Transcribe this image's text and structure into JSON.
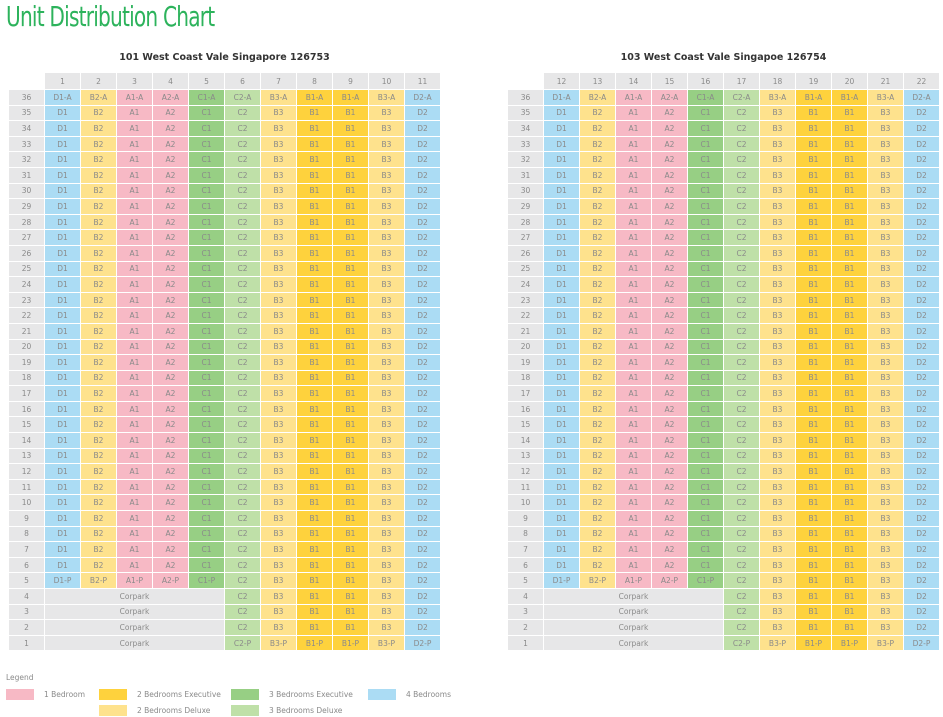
{
  "page_title": "Unit Distribution Chart",
  "colors": {
    "1br": "#f7b9c5",
    "2br_exec": "#fed23d",
    "2br_deluxe": "#fee28d",
    "3br_exec": "#97cf84",
    "3br_deluxe": "#bfe0a8",
    "4br": "#abdcf4",
    "grid": "#e7e7e8"
  },
  "legend": {
    "title": "Legend",
    "items": [
      {
        "key": "1br",
        "label": "1 Bedroom"
      },
      {
        "key": "2br_exec",
        "label": "2 Bedrooms Executive"
      },
      {
        "key": "2br_deluxe",
        "label": "2 Bedrooms Deluxe"
      },
      {
        "key": "3br_exec",
        "label": "3 Bedrooms Executive"
      },
      {
        "key": "3br_deluxe",
        "label": "3 Bedrooms Deluxe"
      },
      {
        "key": "4br",
        "label": "4 Bedrooms"
      }
    ]
  },
  "chart_data": {
    "type": "table",
    "floors_top": 36,
    "floors_bottom": 1,
    "carpark_label": "Corpark",
    "carpark_floors": [
      1,
      2,
      3,
      4
    ],
    "towers": [
      {
        "title": "101 West Coast Vale Singapore 126753",
        "columns": [
          {
            "num": "1",
            "code": "D1",
            "type": "4br",
            "low_block": true
          },
          {
            "num": "2",
            "code": "B2",
            "type": "2br_deluxe",
            "low_block": true
          },
          {
            "num": "3",
            "code": "A1",
            "type": "1br",
            "low_block": true
          },
          {
            "num": "4",
            "code": "A2",
            "type": "1br",
            "low_block": true
          },
          {
            "num": "5",
            "code": "C1",
            "type": "3br_exec",
            "low_block": true
          },
          {
            "num": "6",
            "code": "C2",
            "type": "3br_deluxe",
            "low_block": false
          },
          {
            "num": "7",
            "code": "B3",
            "type": "2br_deluxe",
            "low_block": false
          },
          {
            "num": "8",
            "code": "B1",
            "type": "2br_exec",
            "low_block": false
          },
          {
            "num": "9",
            "code": "B1",
            "type": "2br_exec",
            "low_block": false
          },
          {
            "num": "10",
            "code": "B3",
            "type": "2br_deluxe",
            "low_block": false
          },
          {
            "num": "11",
            "code": "D2",
            "type": "4br",
            "low_block": false
          }
        ]
      },
      {
        "title": "103 West Coast Vale Singapoe 126754",
        "columns": [
          {
            "num": "12",
            "code": "D1",
            "type": "4br",
            "low_block": true
          },
          {
            "num": "13",
            "code": "B2",
            "type": "2br_deluxe",
            "low_block": true
          },
          {
            "num": "14",
            "code": "A1",
            "type": "1br",
            "low_block": true
          },
          {
            "num": "15",
            "code": "A2",
            "type": "1br",
            "low_block": true
          },
          {
            "num": "16",
            "code": "C1",
            "type": "3br_exec",
            "low_block": true
          },
          {
            "num": "17",
            "code": "C2",
            "type": "3br_deluxe",
            "low_block": false
          },
          {
            "num": "18",
            "code": "B3",
            "type": "2br_deluxe",
            "low_block": false
          },
          {
            "num": "19",
            "code": "B1",
            "type": "2br_exec",
            "low_block": false
          },
          {
            "num": "20",
            "code": "B1",
            "type": "2br_exec",
            "low_block": false
          },
          {
            "num": "21",
            "code": "B3",
            "type": "2br_deluxe",
            "low_block": false
          },
          {
            "num": "22",
            "code": "D2",
            "type": "4br",
            "low_block": false
          }
        ]
      }
    ],
    "suffixes": {
      "top_floor": "-A",
      "lowest_floor": "-P"
    }
  }
}
